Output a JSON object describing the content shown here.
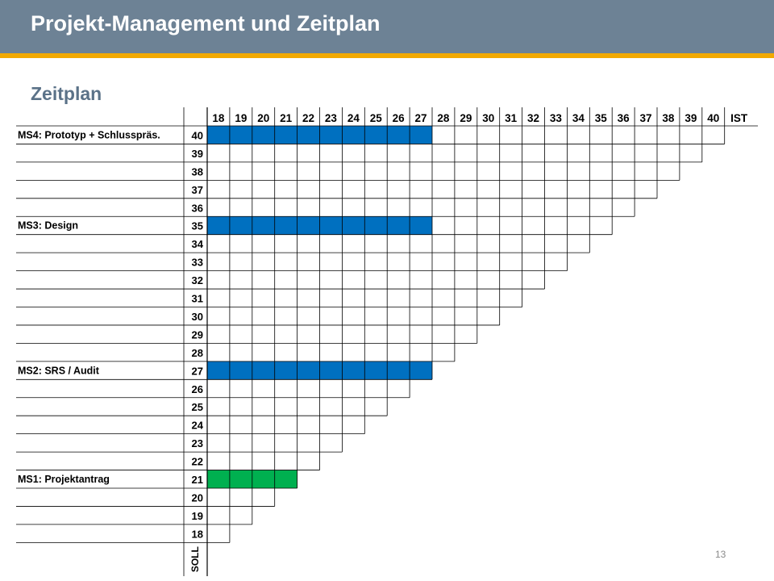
{
  "slide": {
    "title": "Projekt-Management und Zeitplan",
    "subtitle": "Zeitplan",
    "page_number": "13"
  },
  "chart_data": {
    "type": "table",
    "description": "Meilenstein-Trendanalyse: rows are planned weeks (SOLL, 18-40), columns are reporting weeks (18-40, IST). Colored cells mark the planned week of each milestone at each reporting week.",
    "column_header": [
      "18",
      "19",
      "20",
      "21",
      "22",
      "23",
      "24",
      "25",
      "26",
      "27",
      "28",
      "29",
      "30",
      "31",
      "32",
      "33",
      "34",
      "35",
      "36",
      "37",
      "38",
      "39",
      "40",
      "IST"
    ],
    "row_axis_label": "SOLL",
    "weeks": [
      40,
      39,
      38,
      37,
      36,
      35,
      34,
      33,
      32,
      31,
      30,
      29,
      28,
      27,
      26,
      25,
      24,
      23,
      22,
      21,
      20,
      19,
      18
    ],
    "first_reporting_week": 18,
    "milestones": [
      {
        "label": "MS4: Prototyp + Schlusspräs.",
        "planned_week": 40,
        "reported_weeks": [
          18,
          19,
          20,
          21,
          22,
          23,
          24,
          25,
          26,
          27
        ],
        "color": "#0070c0"
      },
      {
        "label": "MS3: Design",
        "planned_week": 35,
        "reported_weeks": [
          18,
          19,
          20,
          21,
          22,
          23,
          24,
          25,
          26,
          27
        ],
        "color": "#0070c0"
      },
      {
        "label": "MS2: SRS / Audit",
        "planned_week": 27,
        "reported_weeks": [
          18,
          19,
          20,
          21,
          22,
          23,
          24,
          25,
          26,
          27
        ],
        "color": "#0070c0"
      },
      {
        "label": "MS1: Projektantrag",
        "planned_week": 21,
        "reported_weeks": [
          18,
          19,
          20,
          21
        ],
        "color": "#00b050"
      }
    ]
  }
}
